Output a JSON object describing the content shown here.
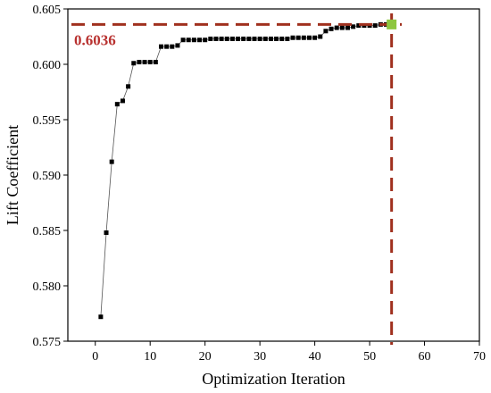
{
  "chart_data": {
    "type": "scatter",
    "xlabel": "Optimization Iteration",
    "ylabel": "Lift Coefficient",
    "xlim": [
      -5,
      70
    ],
    "ylim": [
      0.575,
      0.605
    ],
    "xticks": [
      0,
      10,
      20,
      30,
      40,
      50,
      60,
      70
    ],
    "yticks": [
      0.575,
      0.58,
      0.585,
      0.59,
      0.595,
      0.6,
      0.605
    ],
    "xtick_labels": [
      "0",
      "10",
      "20",
      "30",
      "40",
      "50",
      "60",
      "70"
    ],
    "ytick_labels": [
      "0.575",
      "0.580",
      "0.585",
      "0.590",
      "0.595",
      "0.600",
      "0.605"
    ],
    "grid": false,
    "series": [
      {
        "x": [
          1,
          2,
          3,
          4,
          5,
          6,
          7,
          8,
          9,
          10,
          11,
          12,
          13,
          14,
          15,
          16,
          17,
          18,
          19,
          20,
          21,
          22,
          23,
          24,
          25,
          26,
          27,
          28,
          29,
          30,
          31,
          32,
          33,
          34,
          35,
          36,
          37,
          38,
          39,
          40,
          41,
          42,
          43,
          44,
          45,
          46,
          47,
          48,
          49,
          50,
          51,
          52,
          53,
          54
        ],
        "values": [
          0.5772,
          0.5848,
          0.5912,
          0.5964,
          0.5967,
          0.598,
          0.6001,
          0.6002,
          0.6002,
          0.6002,
          0.6002,
          0.6016,
          0.6016,
          0.6016,
          0.6017,
          0.6022,
          0.6022,
          0.6022,
          0.6022,
          0.6022,
          0.6023,
          0.6023,
          0.6023,
          0.6023,
          0.6023,
          0.6023,
          0.6023,
          0.6023,
          0.6023,
          0.6023,
          0.6023,
          0.6023,
          0.6023,
          0.6023,
          0.6023,
          0.6024,
          0.6024,
          0.6024,
          0.6024,
          0.6024,
          0.6025,
          0.603,
          0.6032,
          0.6033,
          0.6033,
          0.6033,
          0.6034,
          0.6035,
          0.6035,
          0.6035,
          0.6035,
          0.6036,
          0.6036,
          0.6036
        ],
        "color": "#000000"
      }
    ],
    "optimum": {
      "x": 54,
      "y": 0.6036,
      "label": "0.6036",
      "marker_color": "#8dc63f",
      "line_color": "#a0301e",
      "label_color": "#b8312f"
    }
  }
}
